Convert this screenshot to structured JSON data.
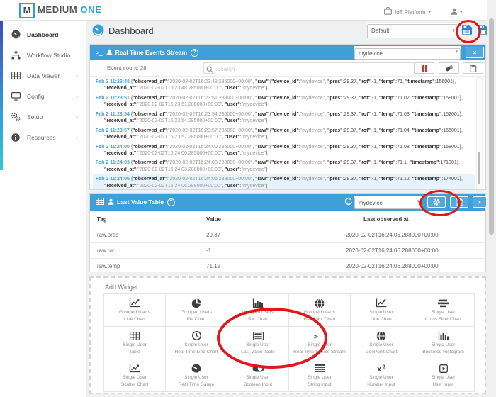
{
  "app": {
    "logo_m": "M",
    "logo_medium": "MEDIUM",
    "logo_one": "ONE",
    "platform_label": "IoT Platform"
  },
  "icons": {
    "close_glyph": "×",
    "terminal_glyph": ">_",
    "help_glyph": "?",
    "chevron_glyph": "›",
    "caret_glyph": "▾"
  },
  "colors": {
    "header_blue": "#3f9fd8",
    "accent_blue": "#2e9fd9",
    "annotation_red": "#e01818",
    "pause_red": "#c23b2e",
    "save_green": "#43a047"
  },
  "sidebar": {
    "items": [
      {
        "label": "Dashboard",
        "icon": "dashboard",
        "active": true,
        "chevron": false
      },
      {
        "label": "Workflow Studio",
        "icon": "workflow",
        "active": false,
        "chevron": false
      },
      {
        "label": "Data Viewer",
        "icon": "data-viewer",
        "active": false,
        "chevron": true
      },
      {
        "label": "Config",
        "icon": "config",
        "active": false,
        "chevron": true
      },
      {
        "label": "Setup",
        "icon": "setup",
        "active": false,
        "chevron": true
      },
      {
        "label": "Resources",
        "icon": "resources",
        "active": false,
        "chevron": true
      }
    ]
  },
  "page": {
    "title": "Dashboard",
    "dashboard_select_value": "Default"
  },
  "events": {
    "title": "Real Time Events Stream",
    "device_select_value": "mydevice",
    "count_label": "Event count: 28",
    "search_placeholder": "Search",
    "entries": [
      {
        "time": "Feb 2 11:23:48",
        "observed_at": "2020-02-02T16:23:48.285000+00:00",
        "device_id": "mydevice",
        "pres": 29.37,
        "rot": -1,
        "temp": 71,
        "timestamp": 156001,
        "received_at": "2020-02-02T16:23:48.285000+00:00",
        "user": "mydevice",
        "highlighted": false
      },
      {
        "time": "Feb 2 11:23:51",
        "observed_at": "2020-02-02T16:23:51.288000+00:00",
        "device_id": "mydevice",
        "pres": 29.37,
        "rot": -1,
        "temp": 71.02,
        "timestamp": 159001,
        "received_at": "2020-02-02T16:23:51.288000+00:00",
        "user": "mydevice",
        "highlighted": false
      },
      {
        "time": "Feb 2 11:23:54",
        "observed_at": "2020-02-02T16:23:54.285000+00:00",
        "device_id": "mydevice",
        "pres": 29.37,
        "rot": -1,
        "temp": 71.03,
        "timestamp": 162001,
        "received_at": "2020-02-02T16:23:54.285000+00:00",
        "user": "mydevice",
        "highlighted": false
      },
      {
        "time": "Feb 2 11:23:57",
        "observed_at": "2020-02-02T16:23:57.285000+00:00",
        "device_id": "mydevice",
        "pres": 29.37,
        "rot": -1,
        "temp": 71.04,
        "timestamp": 165001,
        "received_at": "2020-02-02T16:23:57.285000+00:00",
        "user": "mydevice",
        "highlighted": false
      },
      {
        "time": "Feb 2 11:24:00",
        "observed_at": "2020-02-02T16:24:00.285000+00:00",
        "device_id": "mydevice",
        "pres": 29.37,
        "rot": -1,
        "temp": 71.08,
        "timestamp": 168001,
        "received_at": "2020-02-02T16:24:00.285000+00:00",
        "user": "mydevice",
        "highlighted": false
      },
      {
        "time": "Feb 2 11:24:03",
        "observed_at": "2020-02-02T16:24:03.288000+00:00",
        "device_id": "mydevice",
        "pres": 29.37,
        "rot": -1,
        "temp": 71.1,
        "timestamp": 171001,
        "received_at": "2020-02-02T16:24:03.288000+00:00",
        "user": "mydevice",
        "highlighted": false
      },
      {
        "time": "Feb 2 11:24:06",
        "observed_at": "2020-02-02T16:24:06.288000+00:00",
        "device_id": "mydevice",
        "pres": 29.37,
        "rot": -1,
        "temp": 71.12,
        "timestamp": 174001,
        "received_at": "2020-02-02T16:24:06.288000+00:00",
        "user": "mydevice",
        "highlighted": true
      }
    ]
  },
  "last_value_table": {
    "title": "Last Value Table",
    "device_select_value": "mydevice",
    "columns": [
      "Tag",
      "Value",
      "Last observed at"
    ],
    "rows": [
      {
        "tag": "raw.pres",
        "value": "29.37",
        "last_observed_at": "2020-02-02T16:24:06.288000+00:00"
      },
      {
        "tag": "raw.rot",
        "value": "-1",
        "last_observed_at": "2020-02-02T16:24:06.288000+00:00"
      },
      {
        "tag": "raw.temp",
        "value": "71.12",
        "last_observed_at": "2020-02-02T16:24:06.288000+00:00"
      }
    ]
  },
  "add_widget": {
    "title": "Add Widget",
    "tiles": [
      {
        "line1": "Grouped Users",
        "line2": "Line Chart",
        "icon": "line-chart",
        "circled": false
      },
      {
        "line1": "Grouped Users",
        "line2": "Pie Chart",
        "icon": "pie-chart",
        "circled": false
      },
      {
        "line1": "Grouped Users",
        "line2": "Bar Chart",
        "icon": "bar-chart",
        "circled": false
      },
      {
        "line1": "Grouped Users",
        "line2": "GeoPoint Chart",
        "icon": "geopoint-chart",
        "circled": false
      },
      {
        "line1": "Single User",
        "line2": "Line Chart",
        "icon": "line-chart",
        "circled": false
      },
      {
        "line1": "Single User",
        "line2": "Cross Filter Chart",
        "icon": "cross-filter-chart",
        "circled": false
      },
      {
        "line1": "Single User",
        "line2": "Table",
        "icon": "table",
        "circled": false
      },
      {
        "line1": "Single User",
        "line2": "Real Time Line Chart",
        "icon": "clock",
        "circled": false
      },
      {
        "line1": "Single User",
        "line2": "Last Value Table",
        "icon": "last-value-table",
        "circled": true
      },
      {
        "line1": "Single User",
        "line2": "Real Time Events Stream",
        "icon": "terminal",
        "circled": false
      },
      {
        "line1": "Single User",
        "line2": "GeoPoint Chart",
        "icon": "geopoint-chart",
        "circled": false
      },
      {
        "line1": "Single User",
        "line2": "Bucketed Histogram",
        "icon": "histogram",
        "circled": false
      },
      {
        "line1": "Single User",
        "line2": "Scatter Chart",
        "icon": "scatter-chart",
        "circled": false
      },
      {
        "line1": "Single User",
        "line2": "Real Time Gauge",
        "icon": "gauge",
        "circled": false
      },
      {
        "line1": "Single User",
        "line2": "Boolean Input",
        "icon": "boolean-toggle",
        "circled": false
      },
      {
        "line1": "Single User",
        "line2": "String Input",
        "icon": "string-lines",
        "circled": false
      },
      {
        "line1": "Single User",
        "line2": "Number Input",
        "icon": "number-x2",
        "circled": false
      },
      {
        "line1": "Single User",
        "line2": "User Input",
        "icon": "user-play",
        "circled": false
      }
    ]
  }
}
